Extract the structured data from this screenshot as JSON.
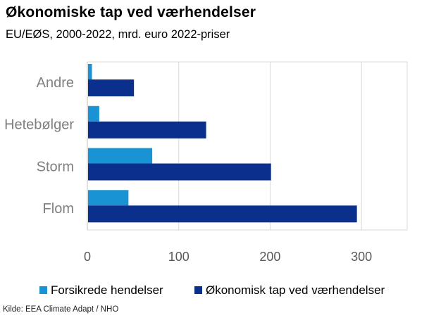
{
  "title": "Økonomiske tap ved værhendelser",
  "subtitle": "EU/EØS, 2000-2022, mrd. euro 2022-priser",
  "source": "Kilde: EEA Climate Adapt / NHO",
  "chart_data": {
    "type": "bar",
    "orientation": "horizontal",
    "categories": [
      "Andre",
      "Hetebølger",
      "Storm",
      "Flom"
    ],
    "series": [
      {
        "name": "Forsikrede hendelser",
        "values": [
          5,
          13,
          71,
          45
        ],
        "color": "#1a93d5"
      },
      {
        "name": "Økonomisk tap ved værhendelser",
        "values": [
          51,
          130,
          201,
          295
        ],
        "color": "#0b2f8c"
      }
    ],
    "xlim": [
      0,
      350
    ],
    "xticks": [
      "0",
      "100",
      "200",
      "300"
    ],
    "grid": true,
    "legend": "bottom"
  }
}
